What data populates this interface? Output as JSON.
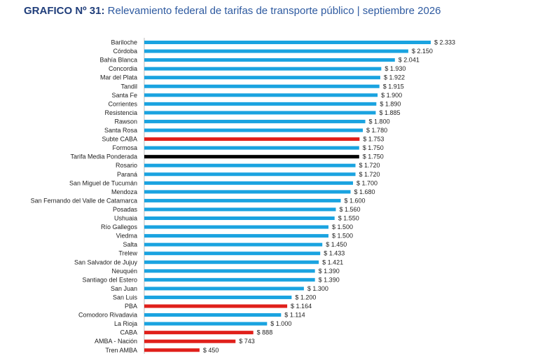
{
  "title_bold": "GRAFICO Nº 31:",
  "title_text": "Relevamiento federal de tarifas de transporte público | septiembre 2026",
  "colors": {
    "default": "#1aa3e0",
    "highlight": "#e0201b",
    "reference": "#000000",
    "axis": "#bbbbbb"
  },
  "chart_data": {
    "type": "bar",
    "orientation": "horizontal",
    "categories": [
      "Bariloche",
      "Córdoba",
      "Bahía Blanca",
      "Concordia",
      "Mar del Plata",
      "Tandil",
      "Santa Fe",
      "Corrientes",
      "Resistencia",
      "Rawson",
      "Santa Rosa",
      "Subte CABA",
      "Formosa",
      "Tarifa Media Ponderada",
      "Rosario",
      "Paraná",
      "San Miguel de Tucumán",
      "Mendoza",
      "San Fernando del Valle de Catamarca",
      "Posadas",
      "Ushuaia",
      "Río Gallegos",
      "Viedma",
      "Salta",
      "Trelew",
      "San Salvador de Jujuy",
      "Neuquén",
      "Santiago del Estero",
      "San Juan",
      "San Luis",
      "PBA",
      "Comodoro Rivadavia",
      "La Rioja",
      "CABA",
      "AMBA - Nación",
      "Tren AMBA"
    ],
    "values": [
      2333,
      2150,
      2041,
      1930,
      1922,
      1915,
      1900,
      1890,
      1885,
      1800,
      1780,
      1753,
      1750,
      1750,
      1720,
      1720,
      1700,
      1680,
      1600,
      1560,
      1550,
      1500,
      1500,
      1450,
      1433,
      1421,
      1390,
      1390,
      1300,
      1200,
      1164,
      1114,
      1000,
      888,
      743,
      450
    ],
    "labels": [
      "$ 2.333",
      "$ 2.150",
      "$ 2.041",
      "$ 1.930",
      "$ 1.922",
      "$ 1.915",
      "$ 1.900",
      "$ 1.890",
      "$ 1.885",
      "$ 1.800",
      "$ 1.780",
      "$ 1.753",
      "$ 1.750",
      "$ 1.750",
      "$ 1.720",
      "$ 1.720",
      "$ 1.700",
      "$ 1.680",
      "$ 1.600",
      "$ 1.560",
      "$ 1.550",
      "$ 1.500",
      "$ 1.500",
      "$ 1.450",
      "$ 1.433",
      "$ 1.421",
      "$ 1.390",
      "$ 1.390",
      "$ 1.300",
      "$ 1.200",
      "$ 1.164",
      "$ 1.114",
      "$ 1.000",
      "$ 888",
      "$ 743",
      "$ 450"
    ],
    "highlighted": [
      "Subte CABA",
      "PBA",
      "CABA",
      "AMBA - Nación",
      "Tren AMBA"
    ],
    "reference": [
      "Tarifa Media Ponderada"
    ],
    "xlim": [
      0,
      2333
    ],
    "grid": false,
    "legend": "none"
  }
}
